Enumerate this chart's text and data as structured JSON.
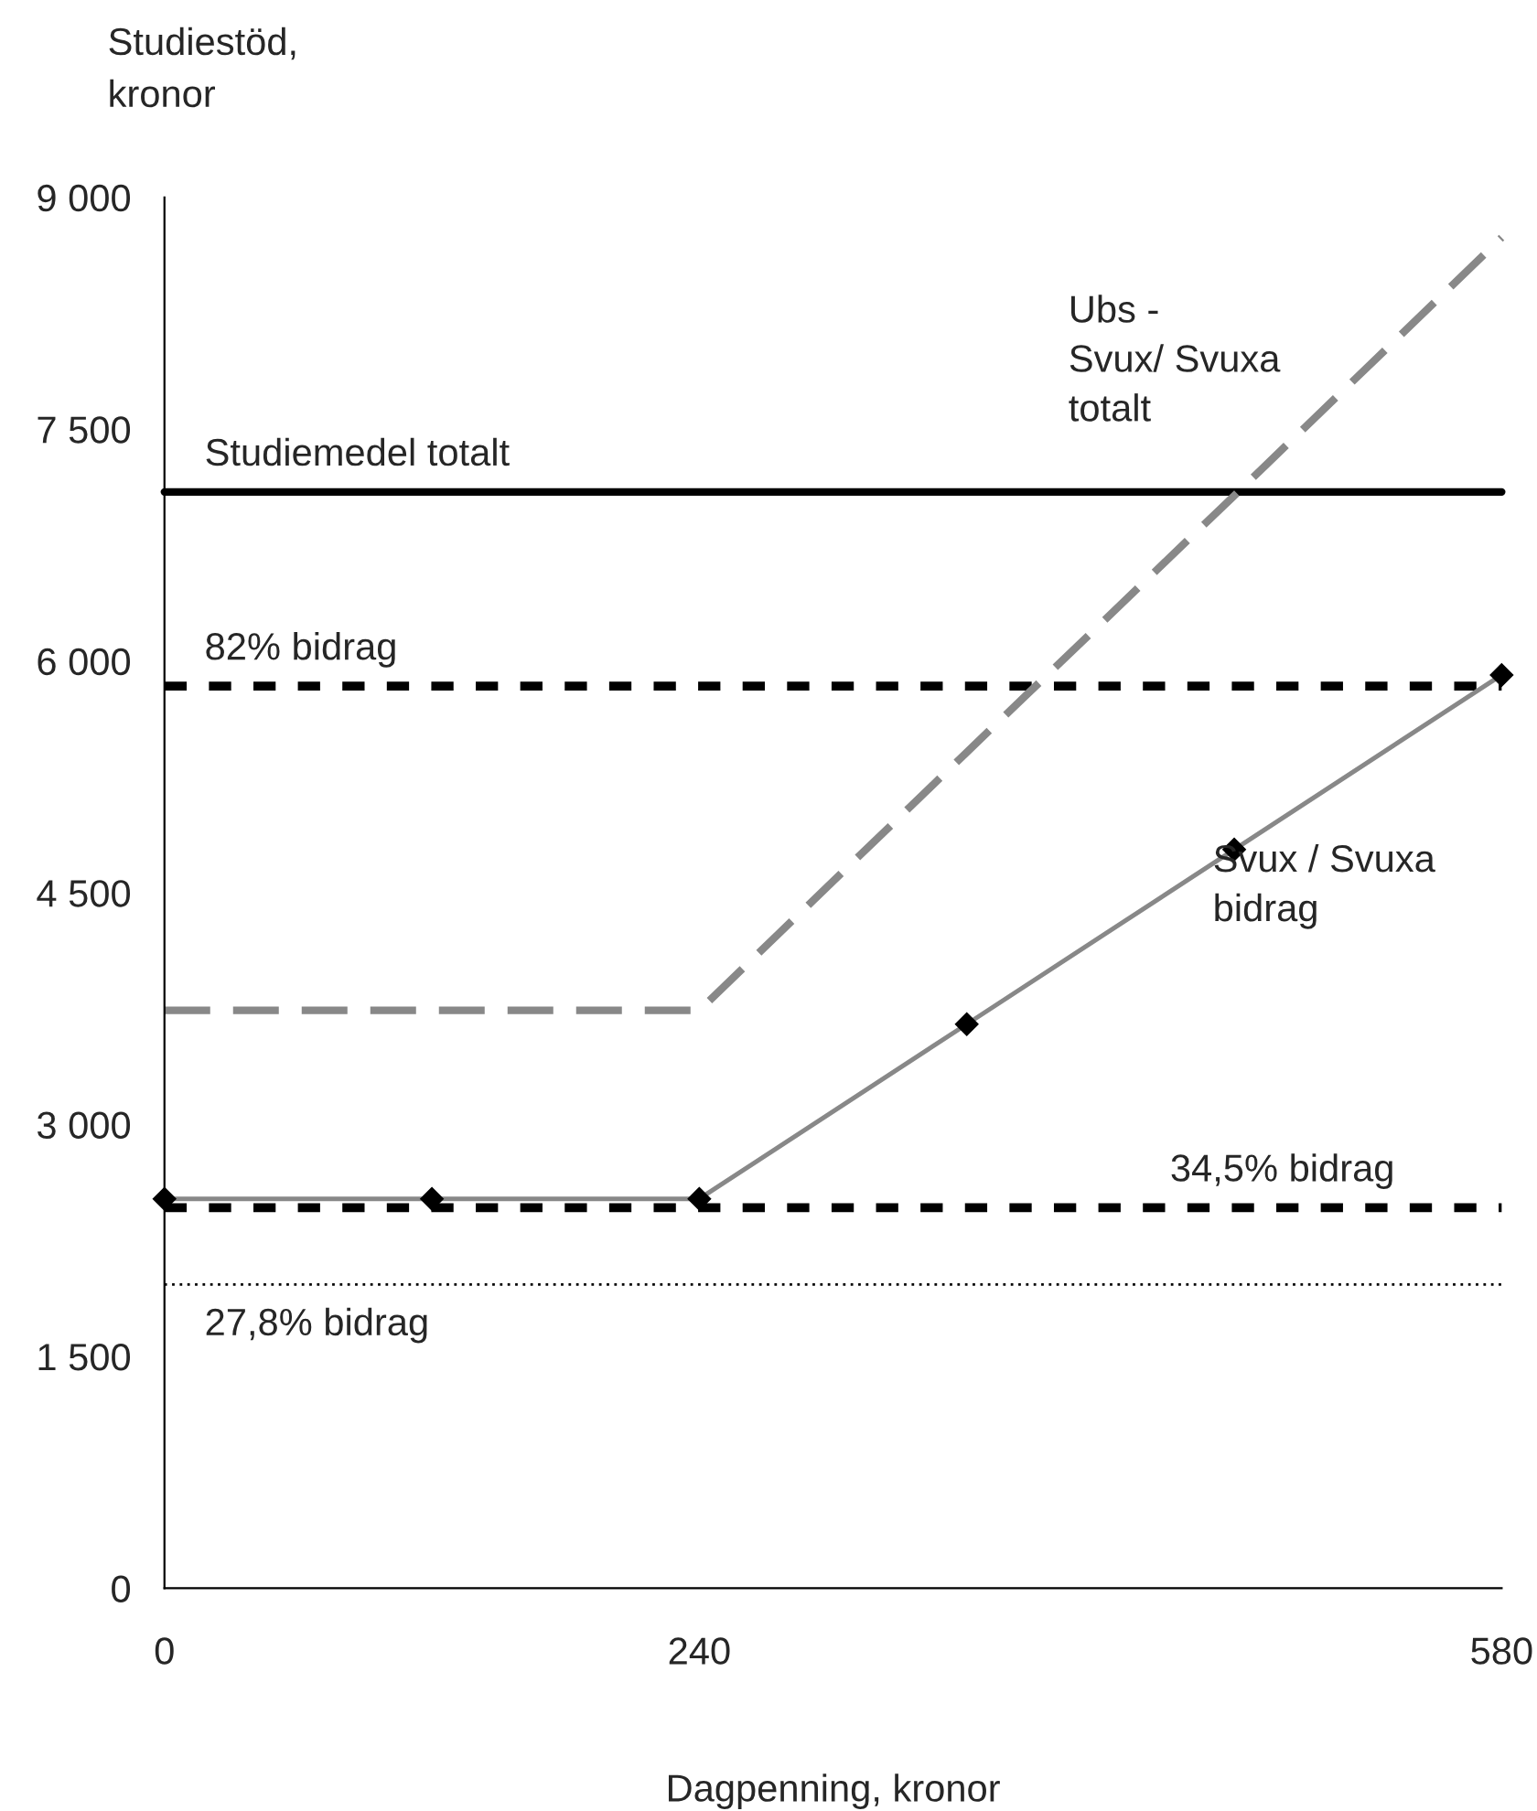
{
  "chart_data": {
    "type": "line",
    "xlabel": "Dagpenning, kronor",
    "ylabel": "Studiestöd,\nkronor",
    "categories": [
      "0",
      null,
      "240",
      null,
      null,
      "580"
    ],
    "series": [
      {
        "name": "Ubs -\nSvux/ Svuxa\ntotalt",
        "color": "#888888",
        "line_style": "dashed",
        "marker": "none",
        "values": [
          3740,
          3740,
          3740,
          5410,
          7070,
          8740
        ]
      },
      {
        "name": "Svux / Svuxa\nbidrag",
        "color": "#888888",
        "line_style": "solid",
        "marker": "diamond",
        "values": [
          2520,
          2520,
          2520,
          3650,
          4780,
          5910
        ]
      }
    ],
    "ref_lines": [
      {
        "axis": "y",
        "value": 7094,
        "label": "Studiemedel totalt",
        "color": "#000000",
        "line_style": "solid"
      },
      {
        "axis": "y",
        "value": 5838,
        "label": "82% bidrag",
        "color": "#000000",
        "line_style": "dashed"
      },
      {
        "axis": "y",
        "value": 2463,
        "label": "34,5% bidrag",
        "color": "#000000",
        "line_style": "dashed"
      },
      {
        "axis": "y",
        "value": 1966,
        "label": "27,8% bidrag",
        "color": "#000000",
        "line_style": "dotted"
      }
    ],
    "ylim": [
      0,
      9000
    ],
    "yticks": [
      {
        "value": 0,
        "label": "0"
      },
      {
        "value": 1500,
        "label": "1 500"
      },
      {
        "value": 3000,
        "label": "3 000"
      },
      {
        "value": 4500,
        "label": "4 500"
      },
      {
        "value": 6000,
        "label": "6 000"
      },
      {
        "value": 7500,
        "label": "7 500"
      },
      {
        "value": 9000,
        "label": "9 000"
      }
    ],
    "grid": false,
    "legend": false
  }
}
